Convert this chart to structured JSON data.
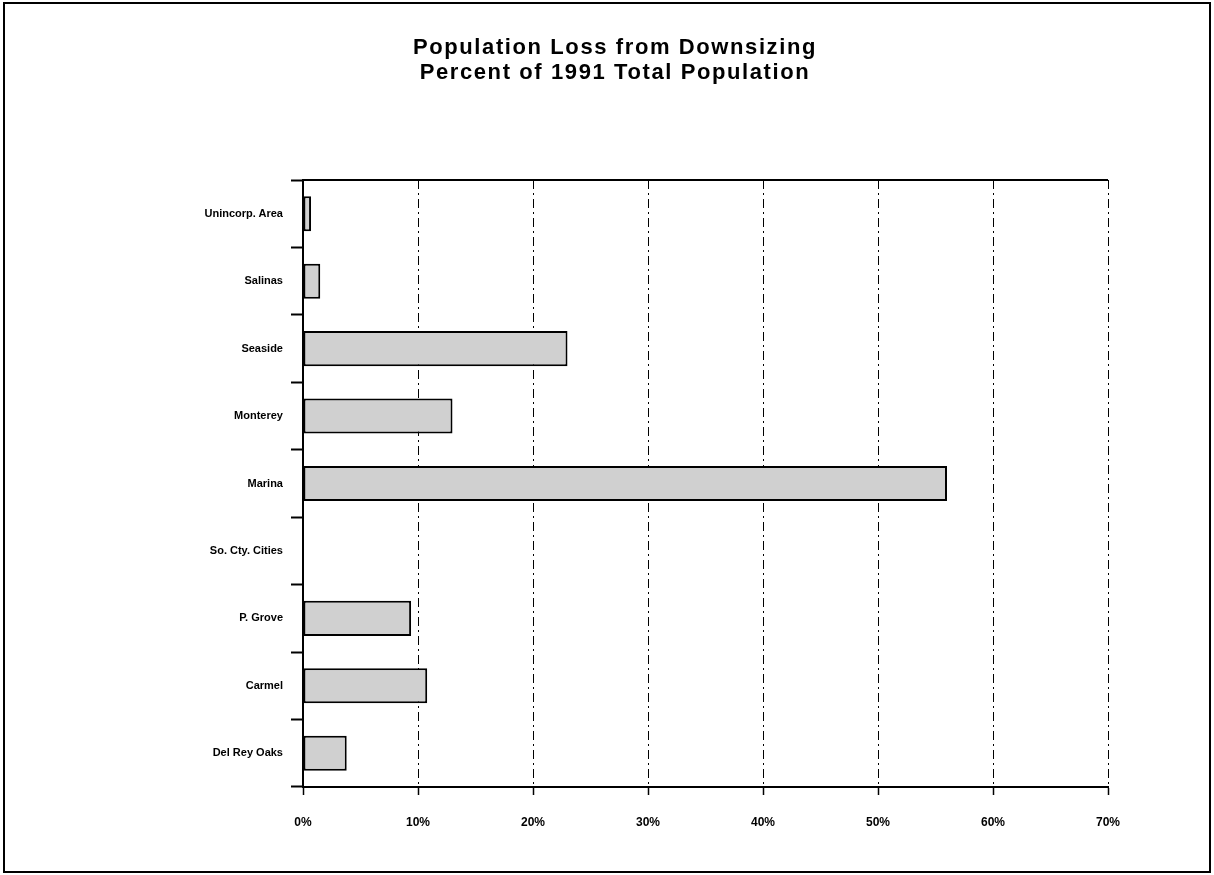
{
  "chart_data": {
    "type": "bar",
    "orientation": "horizontal",
    "title": "Population Loss from Downsizing",
    "subtitle": "Percent of 1991 Total Population",
    "categories": [
      "Unincorp. Area",
      "Salinas",
      "Seaside",
      "Monterey",
      "Marina",
      "So. Cty. Cities",
      "P. Grove",
      "Carmel",
      "Del Rey Oaks"
    ],
    "values": [
      0.7,
      1.5,
      23,
      13,
      56,
      0,
      9.4,
      10.8,
      3.8
    ],
    "color": "#d0d0d0",
    "xlim": [
      0,
      70
    ],
    "xticks": [
      {
        "value": 0,
        "label": "0%"
      },
      {
        "value": 10,
        "label": "10%"
      },
      {
        "value": 20,
        "label": "20%"
      },
      {
        "value": 30,
        "label": "30%"
      },
      {
        "value": 40,
        "label": "40%"
      },
      {
        "value": 50,
        "label": "50%"
      },
      {
        "value": 60,
        "label": "60%"
      },
      {
        "value": 70,
        "label": "70%"
      }
    ],
    "grid": "x"
  }
}
